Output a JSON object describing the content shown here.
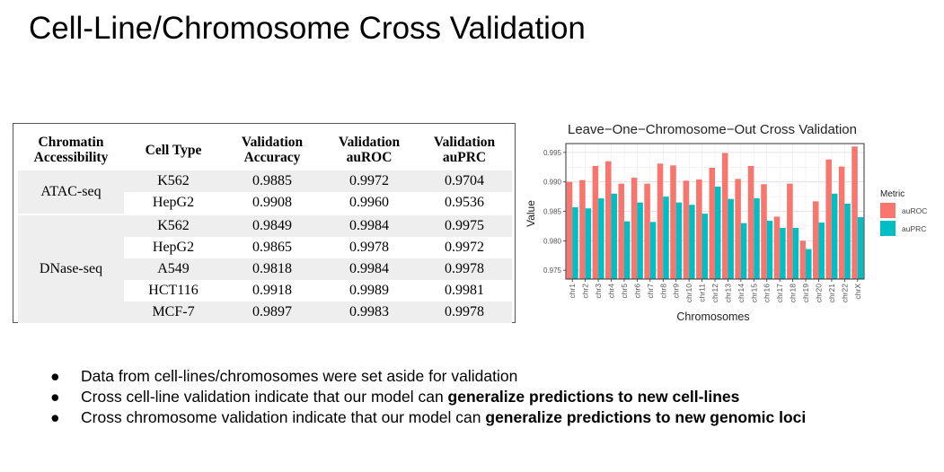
{
  "title": "Cell-Line/Chromosome Cross Validation",
  "table": {
    "headers": [
      "Chromatin Accessibility",
      "Cell Type",
      "Validation Accuracy",
      "Validation auROC",
      "Validation auPRC"
    ],
    "groups": [
      {
        "name": "ATAC-seq",
        "rows": [
          {
            "cell": "K562",
            "acc": "0.9885",
            "auroc": "0.9972",
            "auprc": "0.9704"
          },
          {
            "cell": "HepG2",
            "acc": "0.9908",
            "auroc": "0.9960",
            "auprc": "0.9536"
          }
        ]
      },
      {
        "name": "DNase-seq",
        "rows": [
          {
            "cell": "K562",
            "acc": "0.9849",
            "auroc": "0.9984",
            "auprc": "0.9975"
          },
          {
            "cell": "HepG2",
            "acc": "0.9865",
            "auroc": "0.9978",
            "auprc": "0.9972"
          },
          {
            "cell": "A549",
            "acc": "0.9818",
            "auroc": "0.9984",
            "auprc": "0.9978"
          },
          {
            "cell": "HCT116",
            "acc": "0.9918",
            "auroc": "0.9989",
            "auprc": "0.9981"
          },
          {
            "cell": "MCF-7",
            "acc": "0.9897",
            "auroc": "0.9983",
            "auprc": "0.9978"
          }
        ]
      }
    ]
  },
  "chart_data": {
    "type": "bar",
    "title": "Leave−One−Chromosome−Out Cross Validation",
    "xlabel": "Chromosomes",
    "ylabel": "Value",
    "ylim": [
      0.9735,
      0.9965
    ],
    "yticks": [
      0.975,
      0.98,
      0.985,
      0.99,
      0.995
    ],
    "ytick_labels": [
      "0.975",
      "0.980",
      "0.985",
      "0.990",
      "0.995"
    ],
    "legend_title": "Metric",
    "categories": [
      "chr1",
      "chr2",
      "chr3",
      "chr4",
      "chr5",
      "chr6",
      "chr7",
      "chr8",
      "chr9",
      "chr10",
      "chr11",
      "chr12",
      "chr13",
      "chr14",
      "chr15",
      "chr16",
      "chr17",
      "chr18",
      "chr19",
      "chr20",
      "chr21",
      "chr22",
      "chrX"
    ],
    "series": [
      {
        "name": "auROC",
        "color": "#F8766D",
        "values": [
          0.99,
          0.9903,
          0.9927,
          0.9935,
          0.9897,
          0.9907,
          0.9897,
          0.9931,
          0.9928,
          0.9902,
          0.9904,
          0.9924,
          0.9949,
          0.9905,
          0.9927,
          0.9896,
          0.9841,
          0.9897,
          0.98,
          0.9867,
          0.9938,
          0.9926,
          0.996
        ]
      },
      {
        "name": "auPRC",
        "color": "#00BFC4",
        "values": [
          0.9857,
          0.9855,
          0.9872,
          0.988,
          0.9833,
          0.9865,
          0.9832,
          0.9875,
          0.9865,
          0.9861,
          0.9846,
          0.9892,
          0.9871,
          0.983,
          0.9872,
          0.9834,
          0.9822,
          0.9822,
          0.9786,
          0.9831,
          0.988,
          0.9863,
          0.984
        ]
      }
    ]
  },
  "bullets": [
    {
      "text": "Data from cell-lines/chromosomes were set aside for validation",
      "bold": ""
    },
    {
      "text": "Cross cell-line validation indicate that our model can ",
      "bold": "generalize predictions to new cell-lines"
    },
    {
      "text": "Cross chromosome validation indicate that our model can ",
      "bold": "generalize predictions to new genomic loci"
    }
  ],
  "bullet_symbol": "●"
}
